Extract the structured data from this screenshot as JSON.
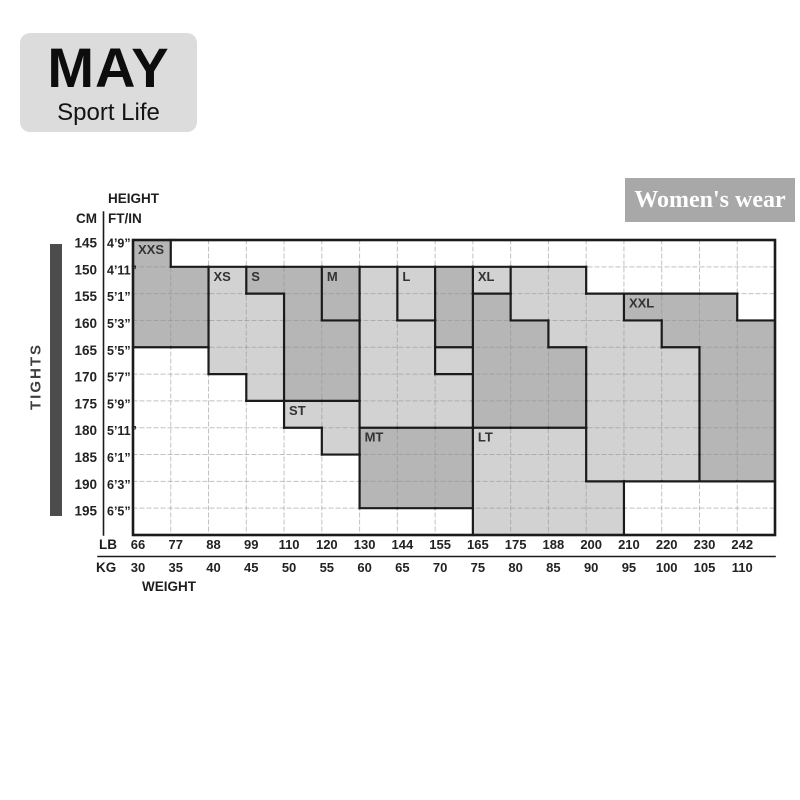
{
  "brand": {
    "name": "MAY",
    "tagline": "Sport Life"
  },
  "category_badge": "Women's wear",
  "product": "TIGHTS",
  "axes": {
    "height_title": "HEIGHT",
    "weight_title": "WEIGHT",
    "cm_label": "CM",
    "ftin_label": "FT/IN",
    "lb_label": "LB",
    "kg_label": "KG"
  },
  "chart_data": {
    "type": "heatmap",
    "title": "Women's tights size chart",
    "height_cm": [
      145,
      150,
      155,
      160,
      165,
      170,
      175,
      180,
      185,
      190,
      195
    ],
    "height_ftin": [
      "4’9”",
      "4’11”",
      "5’1”",
      "5’3”",
      "5’5”",
      "5’7”",
      "5’9”",
      "5’11”",
      "6’1”",
      "6’3”",
      "6’5”"
    ],
    "weight_lb": [
      66,
      77,
      88,
      99,
      110,
      120,
      130,
      144,
      155,
      165,
      175,
      188,
      200,
      210,
      220,
      230,
      242
    ],
    "weight_kg": [
      30,
      35,
      40,
      45,
      50,
      55,
      60,
      65,
      70,
      75,
      80,
      85,
      90,
      95,
      100,
      105,
      110
    ],
    "legend_note": "D = dark shaded cell, L = light shaded cell, W = unshaded; rows top-to-bottom follow height_cm, columns left-to-right follow weight_kg",
    "fills": [
      "DWWWWWWWWWWWWWWWW",
      "DDLDDDLLDLLLWWWWW",
      "DDLLDDLLDDLLLDDDW",
      "DDLLDDLLDDDLLLDDD",
      "WWLLDDLLLDDDLLLDD",
      "WWWLDDLLLDDDLLLDD",
      "WWWWLLLLLDDDLLLDD",
      "WWWWWLDDDLLLLLLDD",
      "WWWWWWDDDLLLLLLDD",
      "WWWWWWDDDLLLLWWWW",
      "WWWWWWWWWLLLLWWWW"
    ],
    "size_labels": [
      {
        "text": "XXS",
        "col": 0,
        "row": 0
      },
      {
        "text": "XS",
        "col": 2,
        "row": 1
      },
      {
        "text": "S",
        "col": 3,
        "row": 1
      },
      {
        "text": "M",
        "col": 5,
        "row": 1
      },
      {
        "text": "L",
        "col": 7,
        "row": 1
      },
      {
        "text": "XL",
        "col": 9,
        "row": 1
      },
      {
        "text": "XXL",
        "col": 13,
        "row": 2
      },
      {
        "text": "ST",
        "col": 4,
        "row": 6
      },
      {
        "text": "MT",
        "col": 6,
        "row": 7
      },
      {
        "text": "LT",
        "col": 9,
        "row": 7
      }
    ],
    "internal_borders": [
      {
        "o": "v",
        "c": 5,
        "r": 1,
        "len": 2
      },
      {
        "o": "h",
        "r": 3,
        "c": 5,
        "len": 1
      },
      {
        "o": "v",
        "c": 6,
        "r": 6,
        "len": 1
      },
      {
        "o": "v",
        "c": 7,
        "r": 1,
        "len": 2
      },
      {
        "o": "h",
        "r": 3,
        "c": 7,
        "len": 1
      },
      {
        "o": "v",
        "c": 8,
        "r": 4,
        "len": 1
      },
      {
        "o": "h",
        "r": 5,
        "c": 8,
        "len": 1
      },
      {
        "o": "v",
        "c": 9,
        "r": 2,
        "len": 2
      },
      {
        "o": "v",
        "c": 10,
        "r": 1,
        "len": 1
      },
      {
        "o": "v",
        "c": 12,
        "r": 7,
        "len": 2
      },
      {
        "o": "h",
        "r": 9,
        "c": 12,
        "len": 1
      }
    ],
    "colors": {
      "dark": "#b6b6b6",
      "light": "#d2d2d2",
      "white": "#ffffff",
      "border": "#1b1b1b",
      "dashed_grid": "#909090",
      "tick_text": "#222222",
      "label_text": "#333333"
    }
  }
}
